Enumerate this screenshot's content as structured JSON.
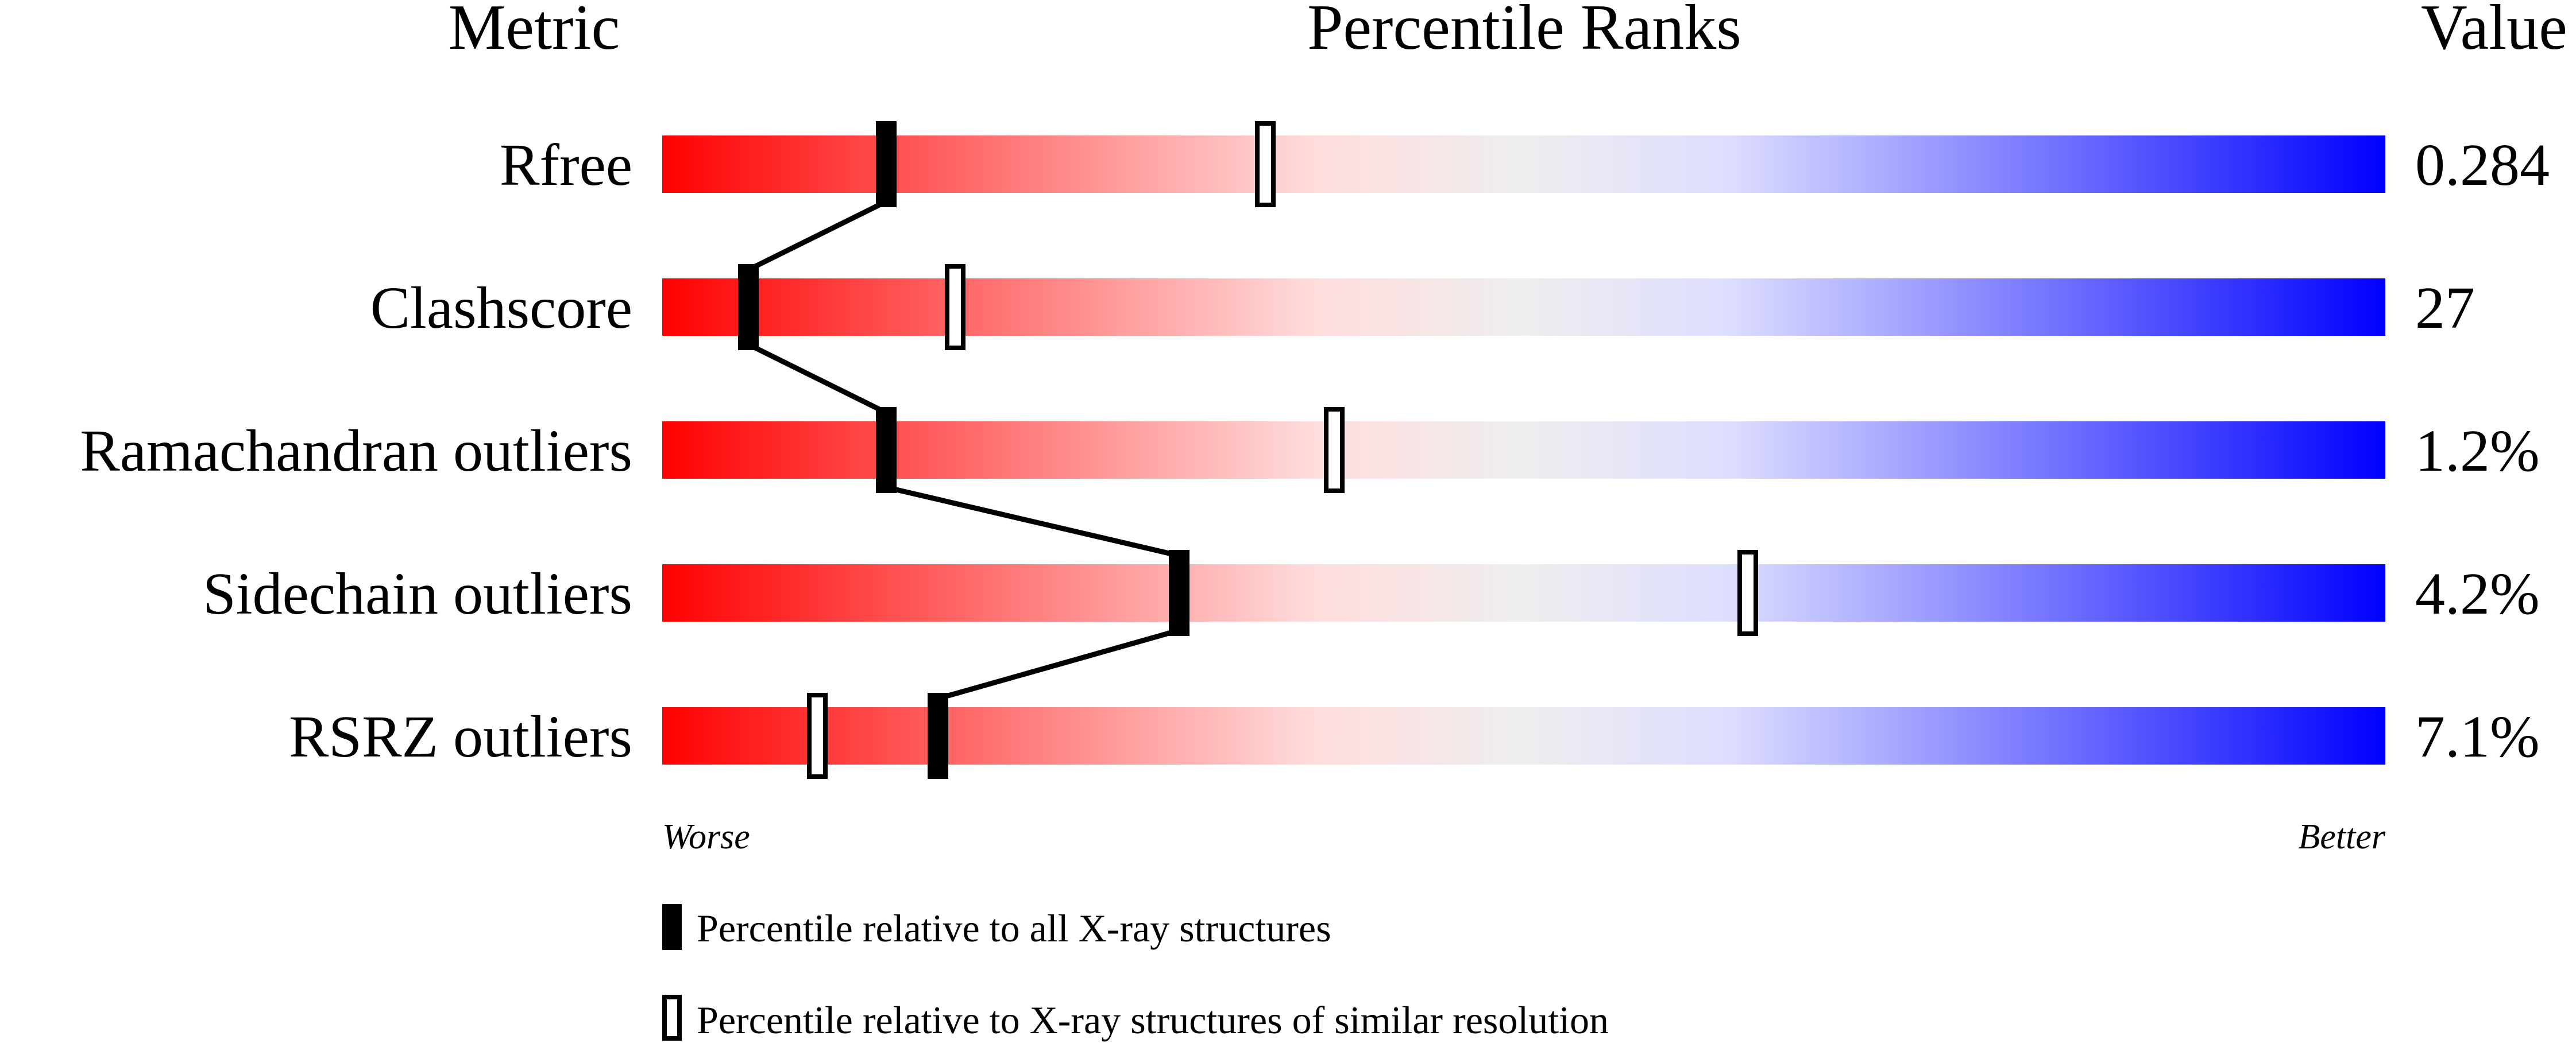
{
  "chart_data": {
    "type": "percentile-bars",
    "headers": {
      "metric": "Metric",
      "ranks": "Percentile Ranks",
      "value": "Value"
    },
    "xlim": [
      0,
      100
    ],
    "rows": [
      {
        "metric": "Rfree",
        "value": "0.284",
        "percentile_all": 13,
        "percentile_similar": 35
      },
      {
        "metric": "Clashscore",
        "value": "27",
        "percentile_all": 5,
        "percentile_similar": 17
      },
      {
        "metric": "Ramachandran outliers",
        "value": "1.2%",
        "percentile_all": 13,
        "percentile_similar": 39
      },
      {
        "metric": "Sidechain outliers",
        "value": "4.2%",
        "percentile_all": 30,
        "percentile_similar": 63
      },
      {
        "metric": "RSRZ outliers",
        "value": "7.1%",
        "percentile_all": 16,
        "percentile_similar": 9
      }
    ],
    "axis_labels": {
      "left": "Worse",
      "right": "Better"
    },
    "legend": [
      {
        "marker": "filled",
        "label": "Percentile relative to all X-ray structures"
      },
      {
        "marker": "hollow",
        "label": "Percentile relative to X-ray structures of similar resolution"
      }
    ],
    "colors": {
      "worse": "#ff0000",
      "middle": "#eeeeee",
      "better": "#0000ff"
    }
  }
}
